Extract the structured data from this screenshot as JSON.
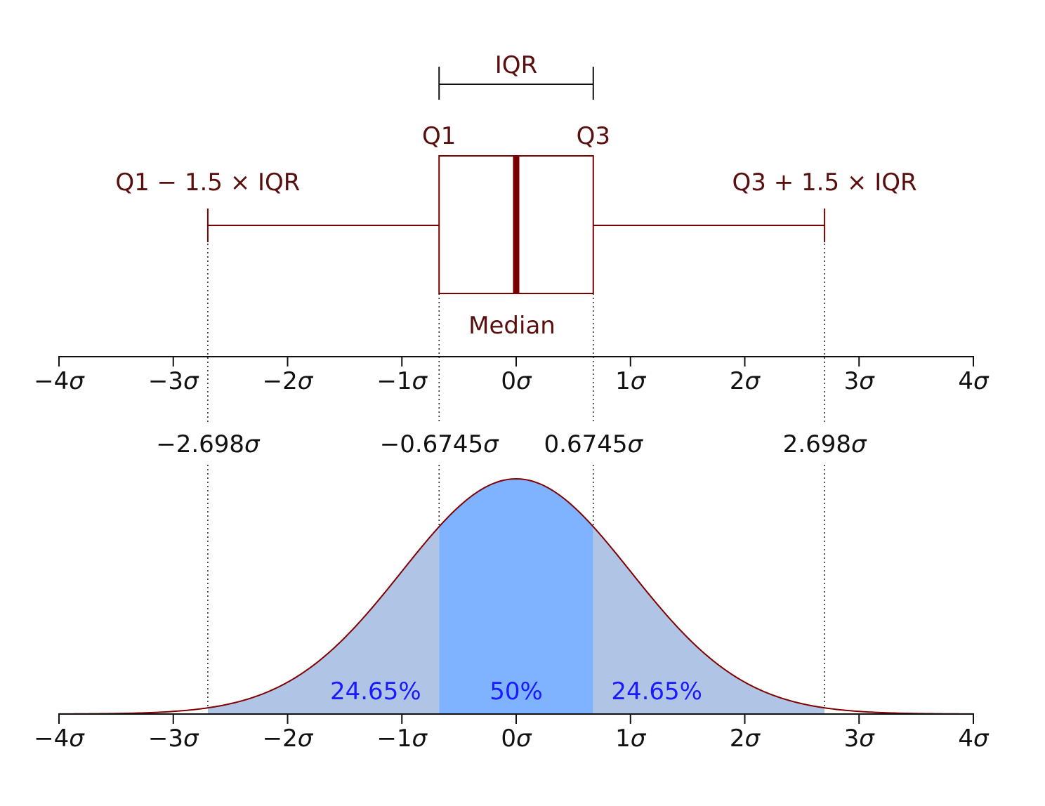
{
  "chart_data": [
    {
      "type": "box",
      "labels": {
        "iqr": "IQR",
        "q1": "Q1",
        "q3": "Q3",
        "lower_fence": "Q1 − 1.5 × IQR",
        "upper_fence": "Q3 + 1.5 × IQR",
        "median": "Median"
      },
      "values": {
        "lower_whisker": -2.698,
        "q1": -0.6745,
        "median": 0,
        "q3": 0.6745,
        "upper_whisker": 2.698
      },
      "xlim": [
        -4,
        4
      ],
      "xticks": [
        "−4σ",
        "−3σ",
        "−2σ",
        "−1σ",
        "0σ",
        "1σ",
        "2σ",
        "3σ",
        "4σ"
      ],
      "colors": {
        "line": "#7a0000",
        "median": "#7a0000"
      }
    },
    {
      "type": "area",
      "distribution": "normal",
      "mean": 0,
      "sd": 1,
      "xlim": [
        -4,
        4
      ],
      "xticks": [
        "−4σ",
        "−3σ",
        "−2σ",
        "−1σ",
        "0σ",
        "1σ",
        "2σ",
        "3σ",
        "4σ"
      ],
      "marker_labels": [
        {
          "x": -2.698,
          "label": "−2.698σ"
        },
        {
          "x": -0.6745,
          "label": "−0.6745σ"
        },
        {
          "x": 0.6745,
          "label": "0.6745σ"
        },
        {
          "x": 2.698,
          "label": "2.698σ"
        }
      ],
      "regions": [
        {
          "from": -2.698,
          "to": -0.6745,
          "label": "24.65%",
          "color": "#b0c4e6"
        },
        {
          "from": -0.6745,
          "to": 0.6745,
          "label": "50%",
          "color": "#80b3ff"
        },
        {
          "from": 0.6745,
          "to": 2.698,
          "label": "24.65%",
          "color": "#b0c4e6"
        }
      ],
      "colors": {
        "curve": "#800000",
        "region_label": "#1a1aff"
      }
    }
  ]
}
